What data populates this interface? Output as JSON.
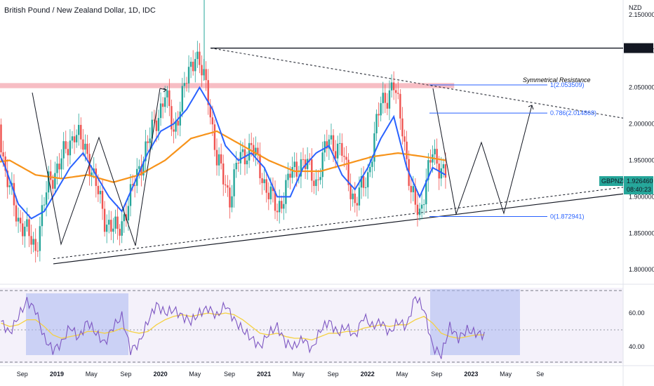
{
  "title": "British Pound / New Zealand Dollar, 1D, IDC",
  "currency_label": "NZD",
  "price_axis": {
    "min": 1.78,
    "max": 2.17,
    "ticks": [
      "2.150000",
      "2.100000",
      "2.050000",
      "2.000000",
      "1.950000",
      "1.900000",
      "1.850000",
      "1.800000"
    ],
    "tick_values": [
      2.15,
      2.1,
      2.05,
      2.0,
      1.95,
      1.9,
      1.85,
      1.8
    ]
  },
  "price_tags": {
    "high": {
      "text": "2.104000",
      "value": 2.104
    },
    "current_symbol": "GBPNZD",
    "current_price": "1.926460",
    "countdown": "08:40:23"
  },
  "time_axis": {
    "labels": [
      "Sep",
      "2019",
      "May",
      "Sep",
      "2020",
      "May",
      "Sep",
      "2021",
      "May",
      "Sep",
      "2022",
      "May",
      "Sep",
      "2023",
      "May",
      "Se"
    ],
    "label_months": [
      8,
      12,
      16,
      20,
      24,
      28,
      32,
      36,
      40,
      44,
      48,
      52,
      56,
      60,
      64,
      68
    ]
  },
  "annotations": {
    "resistance_label": "Symmetrical Resistance",
    "fib_1": "1(2.053509)",
    "fib_0786": "0.786(2.014868)",
    "fib_0": "0(1.872941)",
    "resistance_color": "#f4a7b0",
    "fib_color": "#2962ff"
  },
  "rsi_axis": {
    "ticks": [
      "60.00",
      "40.00"
    ],
    "tick_values": [
      60,
      40
    ],
    "range": [
      30,
      75
    ]
  },
  "colors": {
    "up": "#26a69a",
    "down": "#ef5350",
    "ma_fast": "#2962ff",
    "ma_slow": "#f7931a",
    "rsi": "#7e57c2",
    "rsi_ma": "#f5d142",
    "rsi_bg": "#ede7f6",
    "rsi_box": "#aab6f0",
    "symbol_tag": "#26a69a"
  },
  "chart_data": {
    "type": "line",
    "x_unit": "months since Jul 2018",
    "series": [
      {
        "name": "GBPNZD",
        "x": [
          0,
          1.5,
          3,
          4.3,
          5.5,
          7,
          9,
          10.5,
          12,
          13.5,
          15,
          17,
          18.5,
          20,
          21,
          22.5,
          24,
          25,
          26.5,
          27.5,
          28,
          29,
          30,
          31.5,
          32.5,
          34,
          35.5,
          37,
          38.5,
          40,
          41.5,
          43,
          44.5,
          46,
          47.5,
          49,
          50.5,
          51.5,
          52.5,
          53.5,
          55,
          56.5
        ],
        "values": [
          1.93,
          1.95,
          1.98,
          2.05,
          1.93,
          1.87,
          1.83,
          1.92,
          1.95,
          1.99,
          1.96,
          1.87,
          1.85,
          1.9,
          1.94,
          1.99,
          2.04,
          1.99,
          2.06,
          2.1,
          2.08,
          2.04,
          1.95,
          1.9,
          1.95,
          1.97,
          1.92,
          1.88,
          1.93,
          1.95,
          1.92,
          1.98,
          1.96,
          1.89,
          1.93,
          2.03,
          2.05,
          2.0,
          1.9,
          1.88,
          1.96,
          1.93
        ]
      },
      {
        "name": "MA fast",
        "x": [
          0,
          2,
          4,
          5.5,
          7,
          8.5,
          10,
          11.5,
          13,
          14.5,
          16,
          17.5,
          19,
          20.5,
          22,
          23.5,
          25,
          26.5,
          28,
          29.5,
          31,
          32.5,
          34,
          35.5,
          37,
          38.5,
          40,
          41.5,
          43,
          44.5,
          46,
          47.5,
          49,
          50.5,
          52,
          53.5,
          55,
          56.5
        ],
        "values": [
          1.92,
          1.95,
          1.98,
          1.94,
          1.89,
          1.87,
          1.88,
          1.91,
          1.94,
          1.96,
          1.93,
          1.9,
          1.88,
          1.92,
          1.96,
          1.99,
          2.0,
          2.02,
          2.05,
          2.02,
          1.97,
          1.95,
          1.96,
          1.94,
          1.9,
          1.9,
          1.94,
          1.96,
          1.97,
          1.93,
          1.91,
          1.94,
          1.98,
          2.01,
          1.94,
          1.9,
          1.94,
          1.93
        ]
      },
      {
        "name": "MA slow",
        "x": [
          0,
          3,
          6,
          9,
          12,
          15,
          18,
          21,
          24,
          27,
          30,
          33,
          36,
          39,
          42,
          45,
          48,
          51,
          54,
          56.5
        ],
        "values": [
          1.93,
          1.945,
          1.95,
          1.93,
          1.925,
          1.93,
          1.92,
          1.93,
          1.95,
          1.98,
          1.99,
          1.97,
          1.95,
          1.935,
          1.935,
          1.945,
          1.955,
          1.96,
          1.955,
          1.95
        ]
      }
    ],
    "rsi": {
      "x": [
        0,
        1,
        2,
        3,
        4,
        5,
        6,
        7,
        8,
        9,
        10,
        11,
        12,
        13,
        14,
        15,
        16,
        17,
        18,
        19,
        20,
        21,
        22,
        23,
        24,
        25,
        26,
        27,
        28,
        29,
        30,
        31,
        32,
        33,
        34,
        35,
        36,
        37,
        38,
        39,
        40,
        41,
        42,
        43,
        44,
        45,
        46,
        47,
        48,
        49,
        50,
        51,
        52,
        53,
        54,
        55,
        56
      ],
      "values": [
        55,
        48,
        58,
        67,
        62,
        45,
        38,
        42,
        52,
        45,
        55,
        48,
        42,
        52,
        58,
        38,
        42,
        55,
        65,
        60,
        62,
        58,
        55,
        60,
        63,
        58,
        65,
        56,
        50,
        45,
        40,
        48,
        52,
        42,
        40,
        45,
        38,
        50,
        55,
        48,
        52,
        46,
        58,
        52,
        55,
        48,
        55,
        52,
        70,
        62,
        40,
        35,
        52,
        45,
        50,
        48,
        47
      ],
      "ma_values": [
        54,
        52,
        53,
        56,
        56,
        52,
        47,
        45,
        46,
        47,
        49,
        49,
        48,
        49,
        51,
        49,
        48,
        49,
        53,
        56,
        58,
        59,
        58,
        59,
        60,
        59,
        60,
        59,
        56,
        52,
        48,
        47,
        48,
        46,
        45,
        45,
        44,
        46,
        48,
        48,
        49,
        49,
        51,
        52,
        53,
        52,
        53,
        53,
        56,
        58,
        54,
        48,
        46,
        45,
        46,
        47,
        47
      ]
    }
  }
}
